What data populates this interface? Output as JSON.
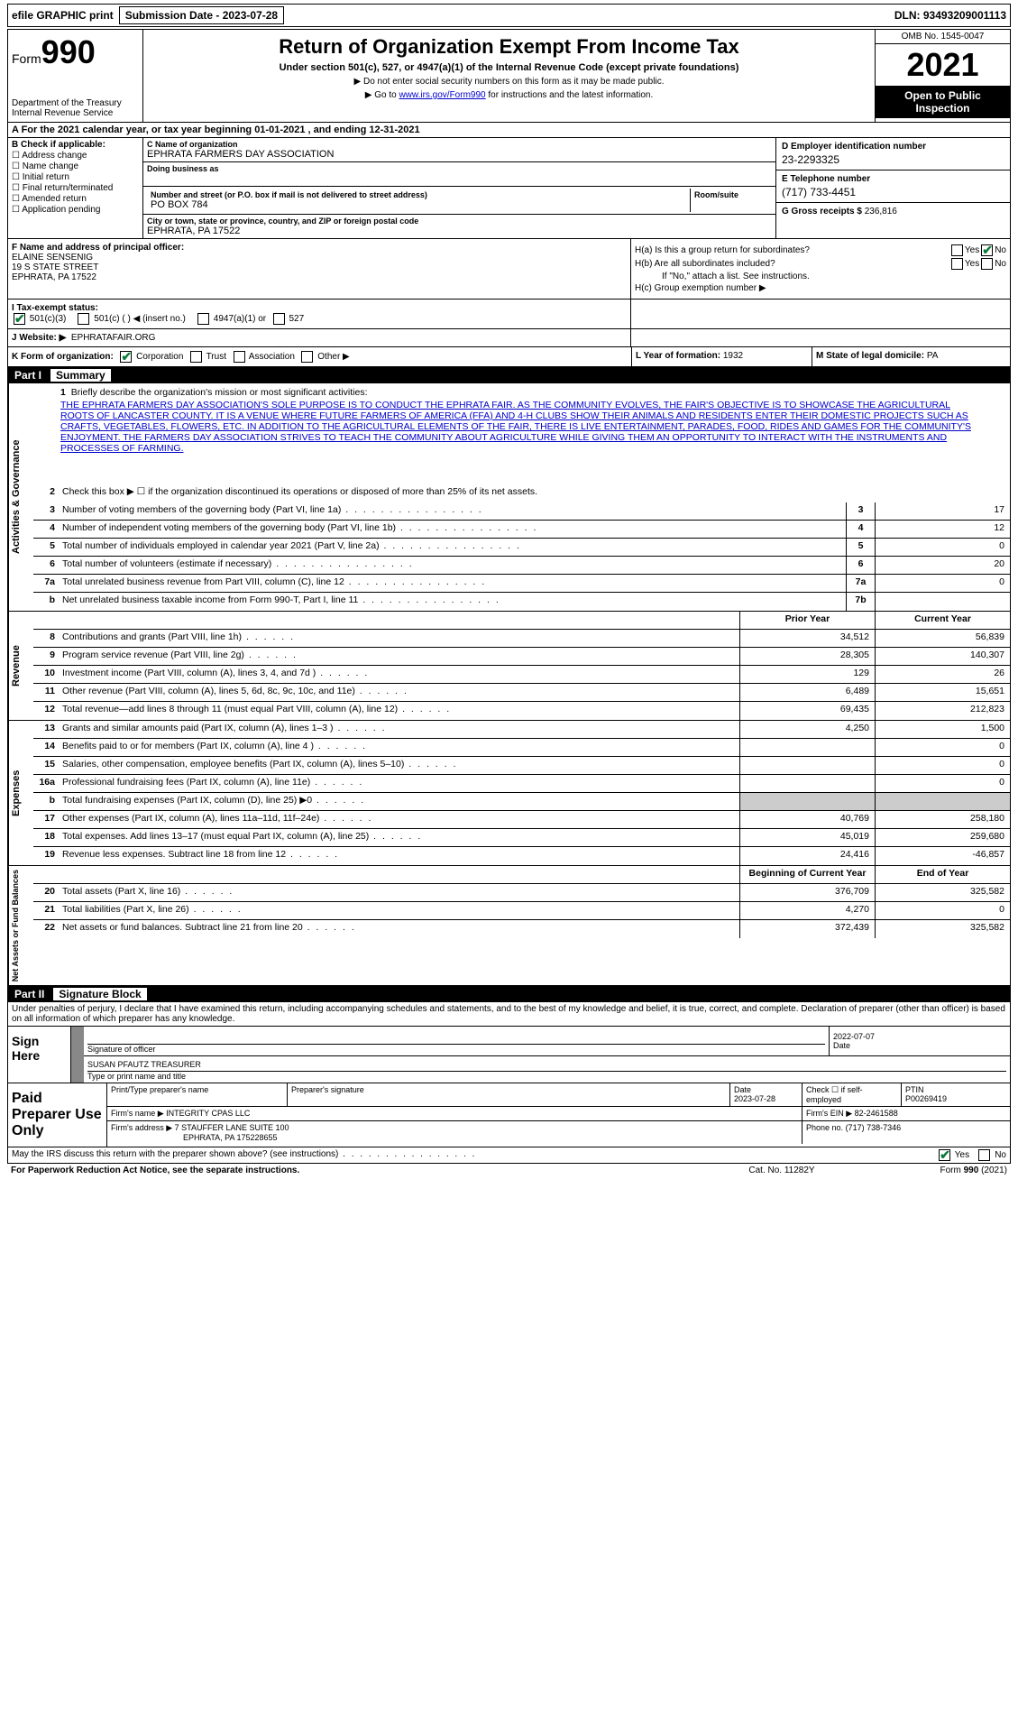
{
  "top": {
    "efile": "efile GRAPHIC print",
    "sub_label": "Submission Date - 2023-07-28",
    "dln": "DLN: 93493209001113"
  },
  "header": {
    "form": "Form",
    "num": "990",
    "dept": "Department of the Treasury Internal Revenue Service",
    "title": "Return of Organization Exempt From Income Tax",
    "sub": "Under section 501(c), 527, or 4947(a)(1) of the Internal Revenue Code (except private foundations)",
    "note1": "▶ Do not enter social security numbers on this form as it may be made public.",
    "note2_pre": "▶ Go to ",
    "note2_link": "www.irs.gov/Form990",
    "note2_post": " for instructions and the latest information.",
    "omb": "OMB No. 1545-0047",
    "year": "2021",
    "open": "Open to Public Inspection"
  },
  "rowA": "A For the 2021 calendar year, or tax year beginning 01-01-2021   , and ending 12-31-2021",
  "colB": {
    "label": "B Check if applicable:",
    "c1": "Address change",
    "c2": "Name change",
    "c3": "Initial return",
    "c4": "Final return/terminated",
    "c5": "Amended return",
    "c6": "Application pending"
  },
  "colC": {
    "name_label": "C Name of organization",
    "name": "EPHRATA FARMERS DAY ASSOCIATION",
    "dba_label": "Doing business as",
    "addr_label": "Number and street (or P.O. box if mail is not delivered to street address)",
    "addr": "PO BOX 784",
    "room_label": "Room/suite",
    "city_label": "City or town, state or province, country, and ZIP or foreign postal code",
    "city": "EPHRATA, PA  17522"
  },
  "colD": {
    "d_label": "D Employer identification number",
    "d_val": "23-2293325",
    "e_label": "E Telephone number",
    "e_val": "(717) 733-4451",
    "g_label": "G Gross receipts $",
    "g_val": "236,816"
  },
  "colF": {
    "label": "F  Name and address of principal officer:",
    "name": "ELAINE SENSENIG",
    "addr1": "19 S STATE STREET",
    "addr2": "EPHRATA, PA  17522"
  },
  "colH": {
    "ha": "H(a)  Is this a group return for subordinates?",
    "hb": "H(b)  Are all subordinates included?",
    "hb_note": "If \"No,\" attach a list. See instructions.",
    "hc": "H(c)  Group exemption number ▶",
    "yes": "Yes",
    "no": "No"
  },
  "rowI": {
    "label": "I   Tax-exempt status:",
    "o1": "501(c)(3)",
    "o2": "501(c) (  ) ◀ (insert no.)",
    "o3": "4947(a)(1) or",
    "o4": "527"
  },
  "rowJ": {
    "label": "J   Website: ▶",
    "val": "EPHRATAFAIR.ORG"
  },
  "rowK": {
    "label": "K Form of organization:",
    "o1": "Corporation",
    "o2": "Trust",
    "o3": "Association",
    "o4": "Other ▶",
    "l_label": "L Year of formation:",
    "l_val": "1932",
    "m_label": "M State of legal domicile:",
    "m_val": "PA"
  },
  "part1": {
    "num": "Part I",
    "title": "Summary"
  },
  "summary": {
    "s1_label": "Briefly describe the organization's mission or most significant activities:",
    "s1_text": "THE EPHRATA FARMERS DAY ASSOCIATION'S SOLE PURPOSE IS TO CONDUCT THE EPHRATA FAIR. AS THE COMMUNITY EVOLVES, THE FAIR'S OBJECTIVE IS TO SHOWCASE THE AGRICULTURAL ROOTS OF LANCASTER COUNTY. IT IS A VENUE WHERE FUTURE FARMERS OF AMERICA (FFA) AND 4-H CLUBS SHOW THEIR ANIMALS AND RESIDENTS ENTER THEIR DOMESTIC PROJECTS SUCH AS CRAFTS, VEGETABLES, FLOWERS, ETC. IN ADDITION TO THE AGRICULTURAL ELEMENTS OF THE FAIR, THERE IS LIVE ENTERTAINMENT, PARADES, FOOD, RIDES AND GAMES FOR THE COMMUNITY'S ENJOYMENT. THE FARMERS DAY ASSOCIATION STRIVES TO TEACH THE COMMUNITY ABOUT AGRICULTURE WHILE GIVING THEM AN OPPORTUNITY TO INTERACT WITH THE INSTRUMENTS AND PROCESSES OF FARMING.",
    "s2": "Check this box ▶ ☐ if the organization discontinued its operations or disposed of more than 25% of its net assets.",
    "rows": [
      {
        "n": "3",
        "d": "Number of voting members of the governing body (Part VI, line 1a)",
        "box": "3",
        "v": "17"
      },
      {
        "n": "4",
        "d": "Number of independent voting members of the governing body (Part VI, line 1b)",
        "box": "4",
        "v": "12"
      },
      {
        "n": "5",
        "d": "Total number of individuals employed in calendar year 2021 (Part V, line 2a)",
        "box": "5",
        "v": "0"
      },
      {
        "n": "6",
        "d": "Total number of volunteers (estimate if necessary)",
        "box": "6",
        "v": "20"
      },
      {
        "n": "7a",
        "d": "Total unrelated business revenue from Part VIII, column (C), line 12",
        "box": "7a",
        "v": "0"
      },
      {
        "n": "b",
        "d": "Net unrelated business taxable income from Form 990-T, Part I, line 11",
        "box": "7b",
        "v": ""
      }
    ],
    "hdr_prior": "Prior Year",
    "hdr_curr": "Current Year",
    "rev": [
      {
        "n": "8",
        "d": "Contributions and grants (Part VIII, line 1h)",
        "p": "34,512",
        "c": "56,839"
      },
      {
        "n": "9",
        "d": "Program service revenue (Part VIII, line 2g)",
        "p": "28,305",
        "c": "140,307"
      },
      {
        "n": "10",
        "d": "Investment income (Part VIII, column (A), lines 3, 4, and 7d )",
        "p": "129",
        "c": "26"
      },
      {
        "n": "11",
        "d": "Other revenue (Part VIII, column (A), lines 5, 6d, 8c, 9c, 10c, and 11e)",
        "p": "6,489",
        "c": "15,651"
      },
      {
        "n": "12",
        "d": "Total revenue—add lines 8 through 11 (must equal Part VIII, column (A), line 12)",
        "p": "69,435",
        "c": "212,823"
      }
    ],
    "exp": [
      {
        "n": "13",
        "d": "Grants and similar amounts paid (Part IX, column (A), lines 1–3 )",
        "p": "4,250",
        "c": "1,500"
      },
      {
        "n": "14",
        "d": "Benefits paid to or for members (Part IX, column (A), line 4 )",
        "p": "",
        "c": "0"
      },
      {
        "n": "15",
        "d": "Salaries, other compensation, employee benefits (Part IX, column (A), lines 5–10)",
        "p": "",
        "c": "0"
      },
      {
        "n": "16a",
        "d": "Professional fundraising fees (Part IX, column (A), line 11e)",
        "p": "",
        "c": "0"
      },
      {
        "n": "b",
        "d": "Total fundraising expenses (Part IX, column (D), line 25) ▶0",
        "p": "shade",
        "c": "shade"
      },
      {
        "n": "17",
        "d": "Other expenses (Part IX, column (A), lines 11a–11d, 11f–24e)",
        "p": "40,769",
        "c": "258,180"
      },
      {
        "n": "18",
        "d": "Total expenses. Add lines 13–17 (must equal Part IX, column (A), line 25)",
        "p": "45,019",
        "c": "259,680"
      },
      {
        "n": "19",
        "d": "Revenue less expenses. Subtract line 18 from line 12",
        "p": "24,416",
        "c": "-46,857"
      }
    ],
    "hdr_beg": "Beginning of Current Year",
    "hdr_end": "End of Year",
    "net": [
      {
        "n": "20",
        "d": "Total assets (Part X, line 16)",
        "p": "376,709",
        "c": "325,582"
      },
      {
        "n": "21",
        "d": "Total liabilities (Part X, line 26)",
        "p": "4,270",
        "c": "0"
      },
      {
        "n": "22",
        "d": "Net assets or fund balances. Subtract line 21 from line 20",
        "p": "372,439",
        "c": "325,582"
      }
    ],
    "vlabels": {
      "ag": "Activities & Governance",
      "rev": "Revenue",
      "exp": "Expenses",
      "net": "Net Assets or Fund Balances"
    }
  },
  "part2": {
    "num": "Part II",
    "title": "Signature Block"
  },
  "sig": {
    "intro": "Under penalties of perjury, I declare that I have examined this return, including accompanying schedules and statements, and to the best of my knowledge and belief, it is true, correct, and complete. Declaration of preparer (other than officer) is based on all information of which preparer has any knowledge.",
    "sign_here": "Sign Here",
    "sig_label": "Signature of officer",
    "date_label": "Date",
    "date_val": "2022-07-07",
    "name": "SUSAN PFAUTZ  TREASURER",
    "name_label": "Type or print name and title"
  },
  "prep": {
    "label": "Paid Preparer Use Only",
    "h1": "Print/Type preparer's name",
    "h2": "Preparer's signature",
    "h3": "Date",
    "h3v": "2023-07-28",
    "h4": "Check ☐ if self-employed",
    "h5": "PTIN",
    "h5v": "P00269419",
    "firm_name_l": "Firm's name    ▶",
    "firm_name": "INTEGRITY CPAS LLC",
    "firm_ein_l": "Firm's EIN ▶",
    "firm_ein": "82-2461588",
    "firm_addr_l": "Firm's address ▶",
    "firm_addr": "7 STAUFFER LANE SUITE 100",
    "firm_addr2": "EPHRATA, PA  175228655",
    "phone_l": "Phone no.",
    "phone": "(717) 738-7346"
  },
  "footer": {
    "discuss": "May the IRS discuss this return with the preparer shown above? (see instructions)",
    "yes": "Yes",
    "no": "No",
    "paperwork": "For Paperwork Reduction Act Notice, see the separate instructions.",
    "cat": "Cat. No. 11282Y",
    "form": "Form 990 (2021)"
  }
}
